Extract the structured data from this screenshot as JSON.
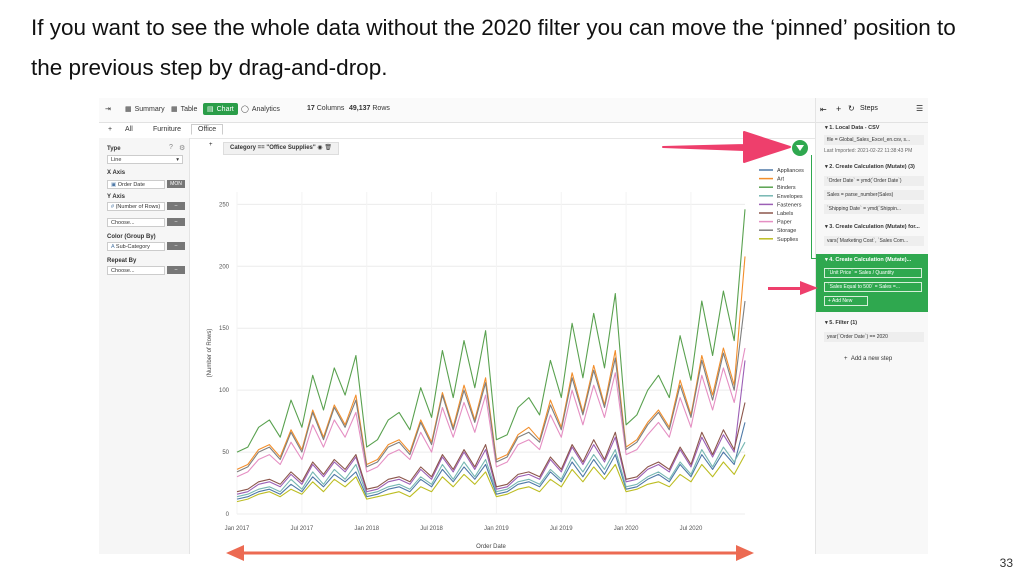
{
  "slide": {
    "title": "If you want to see the whole data without the 2020 filter you can move the ‘pinned’ position to the previous step by drag-and-drop.",
    "page_number": "33"
  },
  "topbar": {
    "summary": "Summary",
    "table": "Table",
    "chart": "Chart",
    "analytics": "Analytics",
    "columns_count": "17",
    "columns_label": "Columns",
    "rows_count": "49,137",
    "rows_label": "Rows"
  },
  "tabs": {
    "all": "All",
    "furniture": "Furniture",
    "office": "Office"
  },
  "left_panel": {
    "type_label": "Type",
    "type_value": "Line",
    "x_axis_label": "X Axis",
    "x_axis_value": "Order Date",
    "x_axis_unit": "MON",
    "y_axis_label": "Y Axis",
    "y_axis_value": "(Number of Rows)",
    "choose1": "Choose...",
    "color_label": "Color (Group By)",
    "color_value": "Sub-Category",
    "repeat_label": "Repeat By",
    "choose2": "Choose..."
  },
  "filter_chip": "Category == \"Office Supplies\"",
  "steps_panel": {
    "title": "Steps",
    "step1": "1. Local Data - CSV",
    "step1_item1": "file = Global_Sales_Excel_en.csv, s...",
    "step1_item2": "Last Imported: 2021-02-22 11:38:43 PM",
    "step2": "2. Create Calculation (Mutate) (3)",
    "step2_item1": "`Order Date` = ymd(`Order Date`)",
    "step2_item2": "Sales = parse_number(Sales)",
    "step2_item3": "`Shipping Date` = ymd(`Shippin...",
    "step3": "3. Create Calculation (Mutate) for...",
    "step3_item1": "vars(`Marketing Cost`, `Sales Com...",
    "step4": "4. Create Calculation (Mutate)...",
    "step4_item1": "`Unit Price` = Sales / Quantity",
    "step4_item2": "`Sales Equal to 500` = Sales =...",
    "step4_add": "+ Add New",
    "step5": "5. Filter (1)",
    "step5_item1": "year(`Order Date`) == 2020",
    "add_step": "Add a new step"
  },
  "colors": {
    "accent": "#2fa84f",
    "callout_arrow": "#ee3f6c",
    "range_arrow": "#ec6a52"
  },
  "chart_data": {
    "type": "line",
    "xlabel": "Order Date",
    "ylabel": "(Number of Rows)",
    "ylim": [
      0,
      260
    ],
    "yticks": [
      0,
      50,
      100,
      150,
      200,
      250
    ],
    "x_tick_labels": [
      "Jan 2017",
      "Jul 2017",
      "Jan 2018",
      "Jul 2018",
      "Jan 2019",
      "Jul 2019",
      "Jan 2020",
      "Jul 2020"
    ],
    "x_tick_index": [
      0,
      6,
      12,
      18,
      24,
      30,
      36,
      42
    ],
    "n_points": 48,
    "grid": true,
    "legend_position": "right",
    "series": [
      {
        "name": "Appliances",
        "color": "#4e79a7",
        "values": [
          12,
          14,
          18,
          20,
          16,
          24,
          18,
          30,
          22,
          32,
          26,
          34,
          14,
          16,
          20,
          22,
          18,
          28,
          22,
          36,
          26,
          38,
          28,
          40,
          16,
          18,
          24,
          26,
          22,
          34,
          26,
          42,
          30,
          44,
          32,
          48,
          20,
          22,
          28,
          32,
          26,
          40,
          30,
          48,
          36,
          50,
          40,
          74
        ]
      },
      {
        "name": "Art",
        "color": "#f28e2b",
        "values": [
          36,
          40,
          52,
          56,
          46,
          68,
          52,
          84,
          62,
          88,
          72,
          96,
          40,
          44,
          56,
          60,
          50,
          76,
          58,
          98,
          70,
          104,
          76,
          110,
          44,
          48,
          64,
          70,
          60,
          92,
          70,
          114,
          82,
          120,
          88,
          132,
          54,
          60,
          74,
          84,
          70,
          108,
          80,
          128,
          96,
          134,
          104,
          208
        ]
      },
      {
        "name": "Binders",
        "color": "#59a14f",
        "values": [
          50,
          54,
          70,
          76,
          62,
          92,
          70,
          112,
          84,
          118,
          96,
          128,
          54,
          60,
          76,
          82,
          68,
          102,
          78,
          132,
          94,
          140,
          102,
          148,
          60,
          64,
          86,
          94,
          80,
          124,
          94,
          154,
          110,
          162,
          118,
          178,
          72,
          80,
          100,
          112,
          94,
          144,
          108,
          172,
          128,
          180,
          140,
          246
        ]
      },
      {
        "name": "Envelopes",
        "color": "#76b7b2",
        "values": [
          14,
          16,
          20,
          22,
          18,
          28,
          20,
          34,
          24,
          36,
          28,
          40,
          16,
          18,
          22,
          24,
          20,
          30,
          24,
          40,
          28,
          42,
          30,
          44,
          18,
          20,
          26,
          28,
          24,
          36,
          28,
          46,
          34,
          48,
          36,
          52,
          22,
          24,
          30,
          34,
          28,
          42,
          32,
          52,
          38,
          54,
          42,
          58
        ]
      },
      {
        "name": "Fasteners",
        "color": "#9c5fb5",
        "values": [
          16,
          18,
          24,
          26,
          22,
          32,
          24,
          40,
          30,
          42,
          34,
          46,
          18,
          20,
          26,
          28,
          24,
          36,
          28,
          46,
          34,
          50,
          36,
          52,
          20,
          22,
          30,
          32,
          28,
          44,
          34,
          54,
          40,
          56,
          42,
          62,
          26,
          28,
          36,
          40,
          34,
          52,
          38,
          62,
          46,
          64,
          50,
          124
        ]
      },
      {
        "name": "Labels",
        "color": "#8c564b",
        "values": [
          18,
          20,
          26,
          28,
          24,
          34,
          26,
          42,
          32,
          44,
          36,
          48,
          20,
          22,
          28,
          30,
          26,
          38,
          30,
          48,
          36,
          52,
          38,
          56,
          22,
          24,
          32,
          34,
          30,
          46,
          36,
          56,
          42,
          60,
          44,
          66,
          28,
          30,
          38,
          42,
          36,
          54,
          40,
          66,
          48,
          68,
          52,
          90
        ]
      },
      {
        "name": "Paper",
        "color": "#e58fc3",
        "values": [
          30,
          34,
          44,
          48,
          40,
          58,
          44,
          72,
          54,
          76,
          62,
          82,
          34,
          38,
          48,
          52,
          44,
          66,
          50,
          86,
          62,
          90,
          66,
          96,
          38,
          42,
          56,
          60,
          52,
          80,
          62,
          100,
          72,
          104,
          78,
          114,
          48,
          52,
          64,
          74,
          62,
          94,
          70,
          112,
          84,
          118,
          90,
          134
        ]
      },
      {
        "name": "Storage",
        "color": "#7f7f7f",
        "values": [
          34,
          38,
          50,
          54,
          44,
          66,
          50,
          82,
          60,
          86,
          70,
          92,
          38,
          42,
          54,
          58,
          48,
          74,
          56,
          96,
          68,
          100,
          74,
          106,
          42,
          46,
          62,
          66,
          58,
          88,
          68,
          110,
          80,
          116,
          86,
          126,
          52,
          58,
          72,
          82,
          68,
          104,
          78,
          124,
          92,
          130,
          100,
          172
        ]
      },
      {
        "name": "Supplies",
        "color": "#bcbd22",
        "values": [
          10,
          12,
          16,
          18,
          14,
          20,
          16,
          26,
          18,
          28,
          22,
          30,
          12,
          14,
          16,
          18,
          14,
          22,
          18,
          30,
          22,
          32,
          24,
          34,
          14,
          16,
          20,
          22,
          18,
          28,
          22,
          36,
          26,
          38,
          28,
          40,
          18,
          20,
          24,
          26,
          22,
          32,
          26,
          40,
          30,
          42,
          32,
          48
        ]
      }
    ]
  }
}
